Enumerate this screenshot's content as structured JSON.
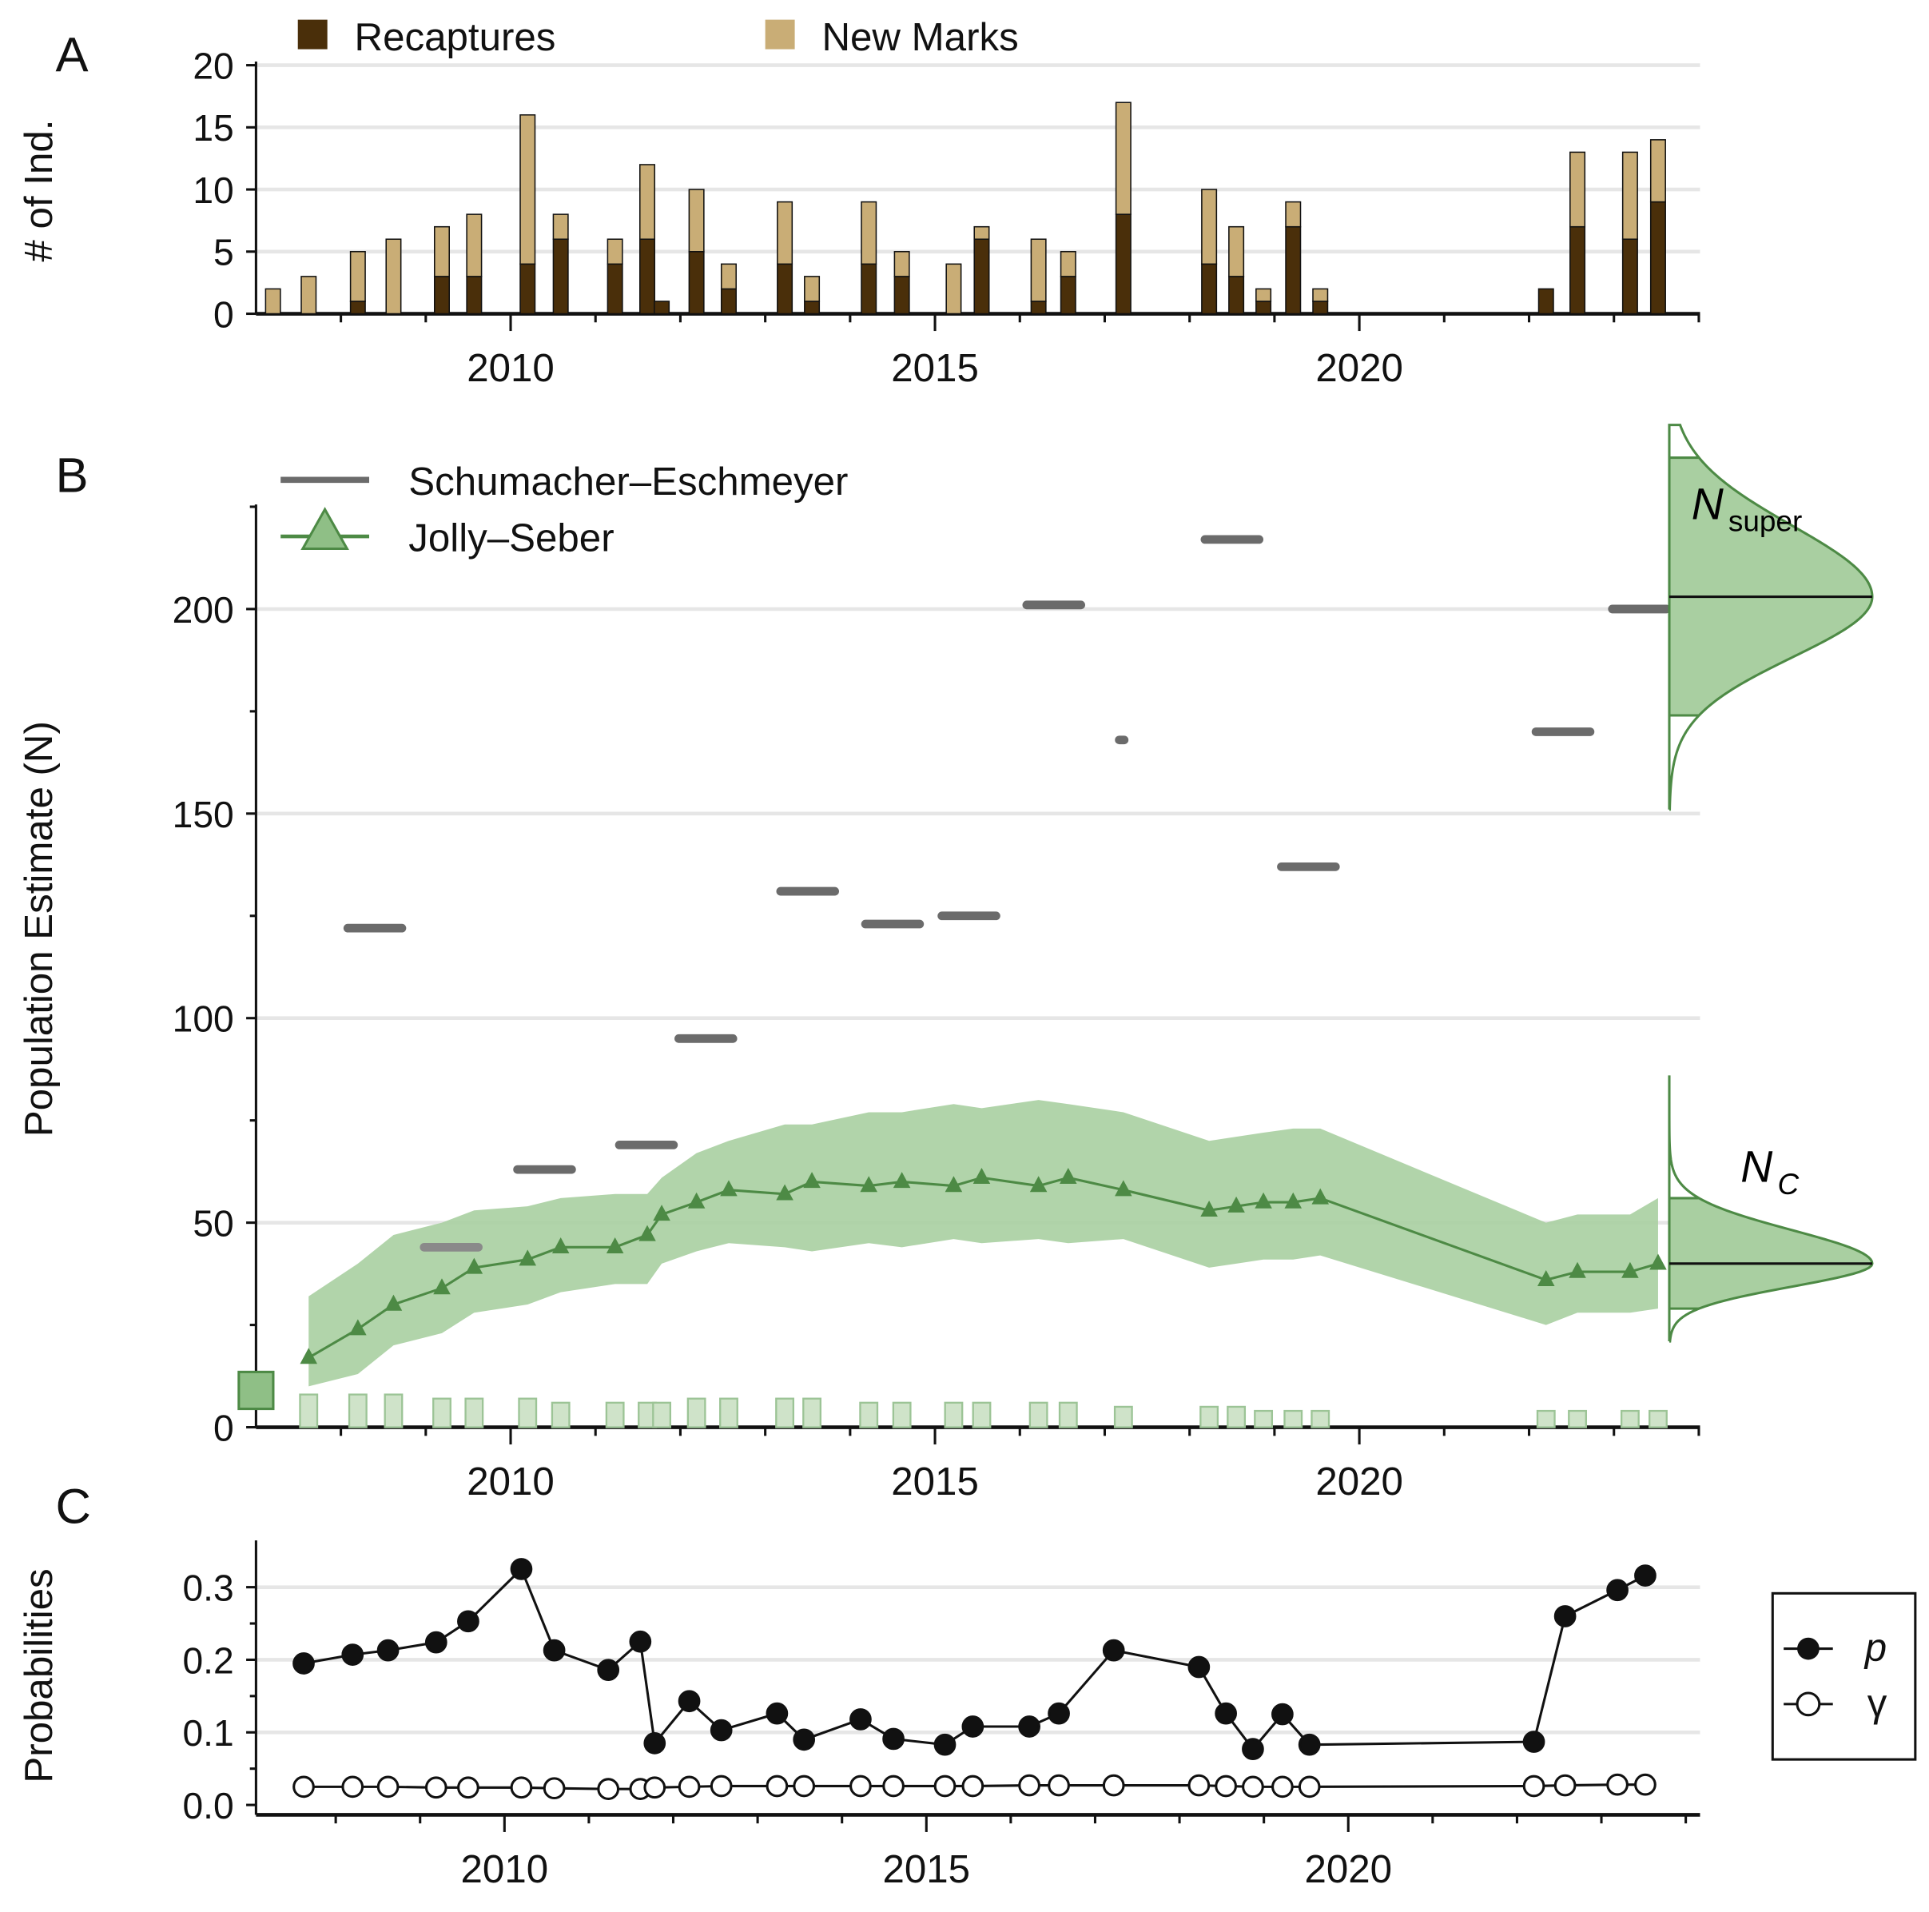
{
  "colors": {
    "recaptures": "#4a2f0a",
    "new_marks": "#c9ad76",
    "js_line": "#4d8a45",
    "js_band": "#a9cfa1",
    "se": "#6b6b6b",
    "bottom_bar": "#cfe3c9"
  },
  "chart_data": [
    {
      "panel": "A",
      "type": "bar",
      "stacked": true,
      "ylabel": "# of Ind.",
      "ylim": [
        0,
        20
      ],
      "yticks": [
        "0",
        "5",
        "10",
        "15",
        "20"
      ],
      "xticks": [
        "2010",
        "2015",
        "2020"
      ],
      "legend": [
        "Recaptures",
        "New Marks"
      ],
      "legend_position": "top",
      "x": [
        2007.2,
        2007.62,
        2008.2,
        2008.62,
        2009.19,
        2009.57,
        2010.2,
        2010.59,
        2011.23,
        2011.61,
        2011.78,
        2012.19,
        2012.57,
        2013.23,
        2013.55,
        2014.22,
        2014.61,
        2015.22,
        2015.55,
        2016.22,
        2016.57,
        2017.22,
        2018.23,
        2018.55,
        2018.87,
        2019.22,
        2019.54,
        2022.2,
        2022.57,
        2023.19,
        2023.52
      ],
      "series": [
        {
          "name": "Recaptures",
          "values": [
            0,
            0,
            1,
            0,
            3,
            3,
            4,
            6,
            4,
            6,
            1,
            5,
            2,
            4,
            1,
            4,
            3,
            0,
            6,
            1,
            3,
            8,
            4,
            3,
            1,
            7,
            1,
            2,
            7,
            6,
            9
          ]
        },
        {
          "name": "New Marks",
          "values": [
            2,
            3,
            4,
            6,
            4,
            5,
            12,
            2,
            2,
            6,
            0,
            5,
            2,
            5,
            2,
            5,
            2,
            4,
            1,
            5,
            2,
            9,
            6,
            4,
            1,
            2,
            1,
            0,
            6,
            7,
            5
          ]
        }
      ]
    },
    {
      "panel": "B",
      "type": "line",
      "ylabel": "Population Estimate (N)",
      "ylim": [
        0,
        225
      ],
      "yticks": [
        "0",
        "50",
        "100",
        "150",
        "200"
      ],
      "xticks": [
        "2010",
        "2015",
        "2020"
      ],
      "legend": [
        "Schumacher–Eschmeyer",
        "Jolly–Seber"
      ],
      "legend_position": "top-left",
      "x": [
        2007.62,
        2008.2,
        2008.62,
        2009.19,
        2009.57,
        2010.2,
        2010.59,
        2011.23,
        2011.61,
        2011.78,
        2012.19,
        2012.57,
        2013.23,
        2013.55,
        2014.22,
        2014.61,
        2015.22,
        2015.55,
        2016.22,
        2016.57,
        2017.22,
        2018.23,
        2018.55,
        2018.87,
        2019.22,
        2019.54,
        2022.2,
        2022.57,
        2023.19,
        2023.52
      ],
      "jolly_seber": [
        17,
        24,
        30,
        34,
        39,
        41,
        44,
        44,
        47,
        52,
        55,
        58,
        57,
        60,
        59,
        60,
        59,
        61,
        59,
        61,
        58,
        53,
        54,
        55,
        55,
        56,
        36,
        38,
        38,
        40
      ],
      "js_upper": [
        32,
        40,
        47,
        50,
        53,
        54,
        56,
        57,
        57,
        61,
        67,
        70,
        74,
        74,
        77,
        77,
        79,
        78,
        80,
        79,
        77,
        70,
        71,
        72,
        73,
        73,
        50,
        52,
        52,
        56
      ],
      "js_lower": [
        10,
        13,
        20,
        23,
        28,
        30,
        33,
        35,
        35,
        40,
        43,
        45,
        44,
        43,
        45,
        44,
        46,
        45,
        46,
        45,
        46,
        39,
        40,
        41,
        41,
        42,
        25,
        28,
        28,
        29
      ],
      "bottom_bars": [
        8,
        8,
        8,
        7,
        7,
        7,
        6,
        6,
        6,
        6,
        7,
        7,
        7,
        7,
        6,
        6,
        6,
        6,
        6,
        6,
        5,
        5,
        5,
        4,
        4,
        4,
        4,
        4,
        4,
        4
      ],
      "initial_square": 9,
      "schumacher_eschmeyer": {
        "x": [
          2008.4,
          2009.3,
          2010.4,
          2011.6,
          2012.3,
          2013.5,
          2014.5,
          2015.4,
          2016.4,
          2017.2,
          2018.5,
          2019.4,
          2022.4,
          2023.3
        ],
        "y": [
          122,
          44,
          63,
          69,
          95,
          131,
          123,
          125,
          201,
          168,
          217,
          137,
          170,
          200
        ]
      },
      "densities": [
        {
          "label": "N",
          "sub": "super",
          "mean": 203,
          "ci": [
            174,
            237
          ],
          "range": [
            151,
            245
          ]
        },
        {
          "label": "N",
          "sub": "C",
          "mean": 40,
          "ci": [
            29,
            56
          ],
          "range": [
            21,
            86
          ]
        }
      ]
    },
    {
      "panel": "C",
      "type": "line",
      "ylabel": "Probabilities",
      "ylim": [
        0,
        0.34
      ],
      "yticks": [
        "0.0",
        "0.1",
        "0.2",
        "0.3"
      ],
      "xticks": [
        "2010",
        "2015",
        "2020"
      ],
      "legend": [
        "p",
        "γ"
      ],
      "legend_position": "right",
      "x": [
        2007.62,
        2008.2,
        2008.62,
        2009.19,
        2009.57,
        2010.2,
        2010.59,
        2011.23,
        2011.61,
        2011.78,
        2012.19,
        2012.57,
        2013.23,
        2013.55,
        2014.22,
        2014.61,
        2015.22,
        2015.55,
        2016.22,
        2016.57,
        2017.22,
        2018.23,
        2018.55,
        2018.87,
        2019.22,
        2019.54,
        2022.2,
        2022.57,
        2023.19,
        2023.52
      ],
      "series": [
        {
          "name": "p",
          "values": [
            0.195,
            0.207,
            0.213,
            0.224,
            0.253,
            0.325,
            0.213,
            0.186,
            0.225,
            0.085,
            0.143,
            0.103,
            0.126,
            0.09,
            0.118,
            0.091,
            0.083,
            0.108,
            0.108,
            0.126,
            0.213,
            0.19,
            0.126,
            0.077,
            0.125,
            0.083,
            0.087,
            0.26,
            0.296,
            0.316
          ]
        },
        {
          "name": "gamma",
          "values": [
            0.025,
            0.025,
            0.025,
            0.024,
            0.024,
            0.024,
            0.023,
            0.022,
            0.022,
            0.024,
            0.025,
            0.026,
            0.026,
            0.026,
            0.026,
            0.026,
            0.026,
            0.026,
            0.027,
            0.027,
            0.027,
            0.027,
            0.026,
            0.025,
            0.025,
            0.025,
            0.026,
            0.027,
            0.028,
            0.028
          ]
        }
      ]
    }
  ]
}
